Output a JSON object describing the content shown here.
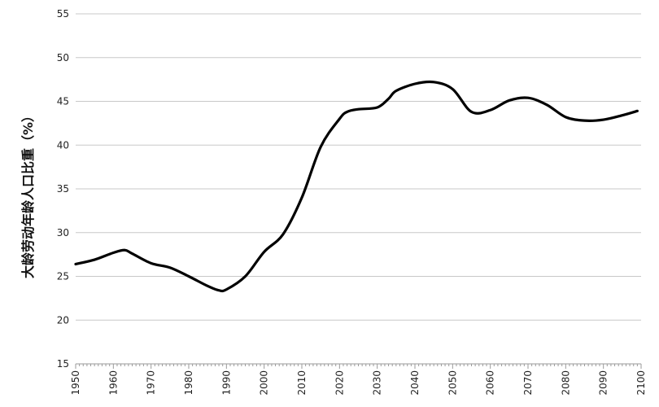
{
  "chart_data": {
    "type": "line",
    "title": "",
    "xlabel": "",
    "ylabel": "大龄劳动年龄人口比重（%）",
    "xlim": [
      1950,
      2100
    ],
    "ylim": [
      15,
      55
    ],
    "grid": "horizontal",
    "x_ticks": [
      "1950",
      "1960",
      "1970",
      "1980",
      "1990",
      "2000",
      "2010",
      "2020",
      "2030",
      "2040",
      "2050",
      "2060",
      "2070",
      "2080",
      "2090",
      "2100"
    ],
    "y_ticks": [
      "15",
      "20",
      "25",
      "30",
      "35",
      "40",
      "45",
      "50",
      "55"
    ],
    "series": [
      {
        "name": "",
        "color": "#000000",
        "x": [
          1950,
          1955,
          1960,
          1963,
          1965,
          1970,
          1975,
          1980,
          1985,
          1988,
          1990,
          1995,
          2000,
          2005,
          2010,
          2015,
          2020,
          2022,
          2025,
          2030,
          2033,
          2035,
          2040,
          2045,
          2050,
          2055,
          2060,
          2065,
          2070,
          2075,
          2080,
          2085,
          2090,
          2095,
          2099
        ],
        "y": [
          26.4,
          26.9,
          27.7,
          28.0,
          27.6,
          26.5,
          26.0,
          25.0,
          23.9,
          23.4,
          23.5,
          25.0,
          27.8,
          29.8,
          34.0,
          39.8,
          43.0,
          43.8,
          44.1,
          44.3,
          45.3,
          46.2,
          47.0,
          47.2,
          46.4,
          43.8,
          44.0,
          45.1,
          45.4,
          44.6,
          43.2,
          42.8,
          42.9,
          43.4,
          43.9
        ]
      }
    ]
  }
}
